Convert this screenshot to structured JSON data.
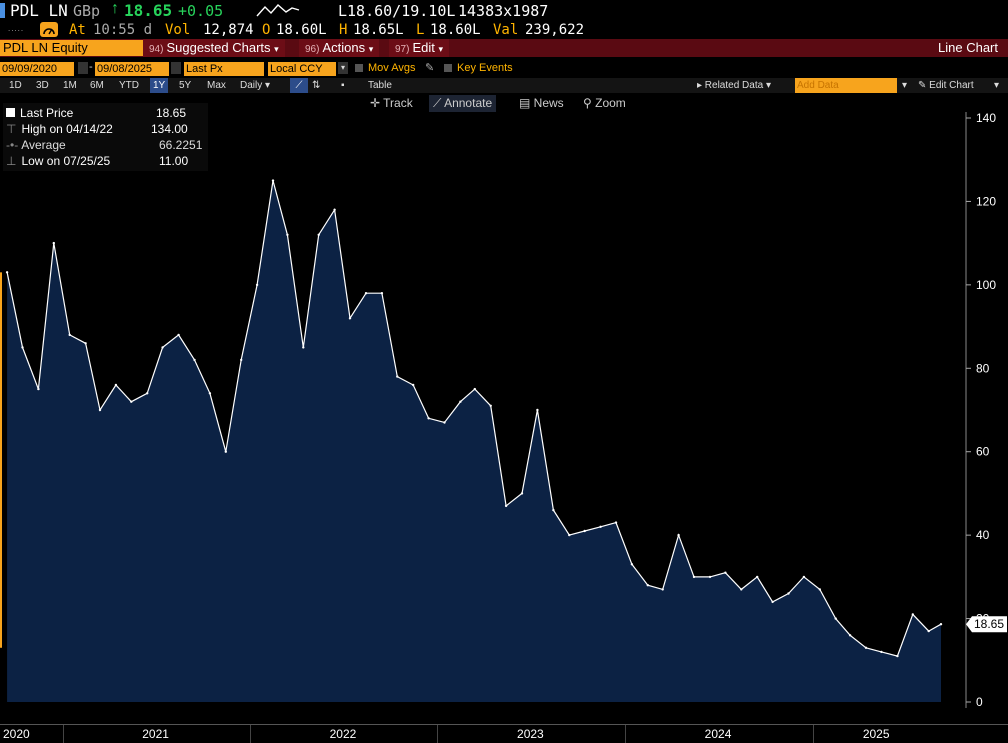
{
  "header": {
    "ticker": "PDL LN",
    "currency": "GBp",
    "last": "18.65",
    "change": "+0.05",
    "bid_ask": "L18.60/19.10L",
    "size": "14383x1987",
    "at_label": "At",
    "time": "10:55 d",
    "vol_label": "Vol",
    "vol": "12,874",
    "open_label": "O",
    "open": "18.60L",
    "high_label": "H",
    "high": "18.65L",
    "low_label": "L",
    "low": "18.60L",
    "val_label": "Val",
    "val": "239,622"
  },
  "menu": {
    "security": "PDL LN Equity",
    "suggested_num": "94)",
    "suggested": "Suggested Charts",
    "actions_num": "96)",
    "actions": "Actions",
    "edit_num": "97)",
    "edit": "Edit",
    "chart_type": "Line Chart"
  },
  "controls": {
    "start_date": "09/09/2020",
    "end_date": "09/08/2025",
    "field": "Last Px",
    "currency": "Local CCY",
    "mov_avgs": "Mov Avgs",
    "key_events": "Key Events"
  },
  "periods": [
    "1D",
    "3D",
    "1M",
    "6M",
    "YTD",
    "1Y",
    "5Y",
    "Max"
  ],
  "selected_period": "1Y",
  "frequency": "Daily",
  "table_label": "Table",
  "related_data": "Related Data",
  "add_data_placeholder": "Add Data",
  "edit_chart": "Edit Chart",
  "tools": {
    "track": "Track",
    "annotate": "Annotate",
    "news": "News",
    "zoom": "Zoom"
  },
  "legend": {
    "last_label": "Last Price",
    "last_value": "18.65",
    "high_label": "High on 04/14/22",
    "high_value": "134.00",
    "avg_label": "Average",
    "avg_value": "66.2251",
    "low_label": "Low on 07/25/25",
    "low_value": "11.00"
  },
  "colors": {
    "background": "#000000",
    "area_fill": "#0c2244",
    "line": "#ffffff",
    "accent": "#f7a41d",
    "up": "#27d35b"
  },
  "chart_data": {
    "type": "area",
    "x_range": [
      "2020-09-09",
      "2025-09-08"
    ],
    "ylim": [
      0,
      140
    ],
    "yticks": [
      0,
      20,
      40,
      60,
      80,
      100,
      120,
      140
    ],
    "grid": false,
    "x_labels": [
      "2020",
      "2021",
      "2022",
      "2023",
      "2024",
      "2025"
    ],
    "last_label": "18.65",
    "x": [
      "2020-09",
      "2020-10",
      "2020-11",
      "2020-12",
      "2021-01",
      "2021-02",
      "2021-03",
      "2021-04",
      "2021-05",
      "2021-06",
      "2021-07",
      "2021-08",
      "2021-09",
      "2021-10",
      "2021-11",
      "2021-12",
      "2022-01",
      "2022-02",
      "2022-03",
      "2022-04",
      "2022-05",
      "2022-06",
      "2022-07",
      "2022-08",
      "2022-09",
      "2022-10",
      "2022-11",
      "2022-12",
      "2023-01",
      "2023-02",
      "2023-03",
      "2023-04",
      "2023-05",
      "2023-06",
      "2023-07",
      "2023-08",
      "2023-09",
      "2023-10",
      "2023-11",
      "2023-12",
      "2024-01",
      "2024-02",
      "2024-03",
      "2024-04",
      "2024-05",
      "2024-06",
      "2024-07",
      "2024-08",
      "2024-09",
      "2024-10",
      "2024-11",
      "2024-12",
      "2025-01",
      "2025-02",
      "2025-03",
      "2025-04",
      "2025-05",
      "2025-06",
      "2025-07",
      "2025-08",
      "2025-09"
    ],
    "values": [
      103,
      85,
      75,
      110,
      88,
      86,
      70,
      76,
      72,
      74,
      85,
      88,
      82,
      74,
      60,
      82,
      100,
      125,
      112,
      85,
      112,
      118,
      92,
      98,
      98,
      78,
      76,
      68,
      67,
      72,
      75,
      71,
      47,
      50,
      70,
      46,
      40,
      41,
      42,
      43,
      33,
      28,
      27,
      40,
      30,
      30,
      31,
      27,
      30,
      24,
      26,
      30,
      27,
      20,
      16,
      13,
      12,
      11,
      21,
      17,
      18.65
    ]
  }
}
